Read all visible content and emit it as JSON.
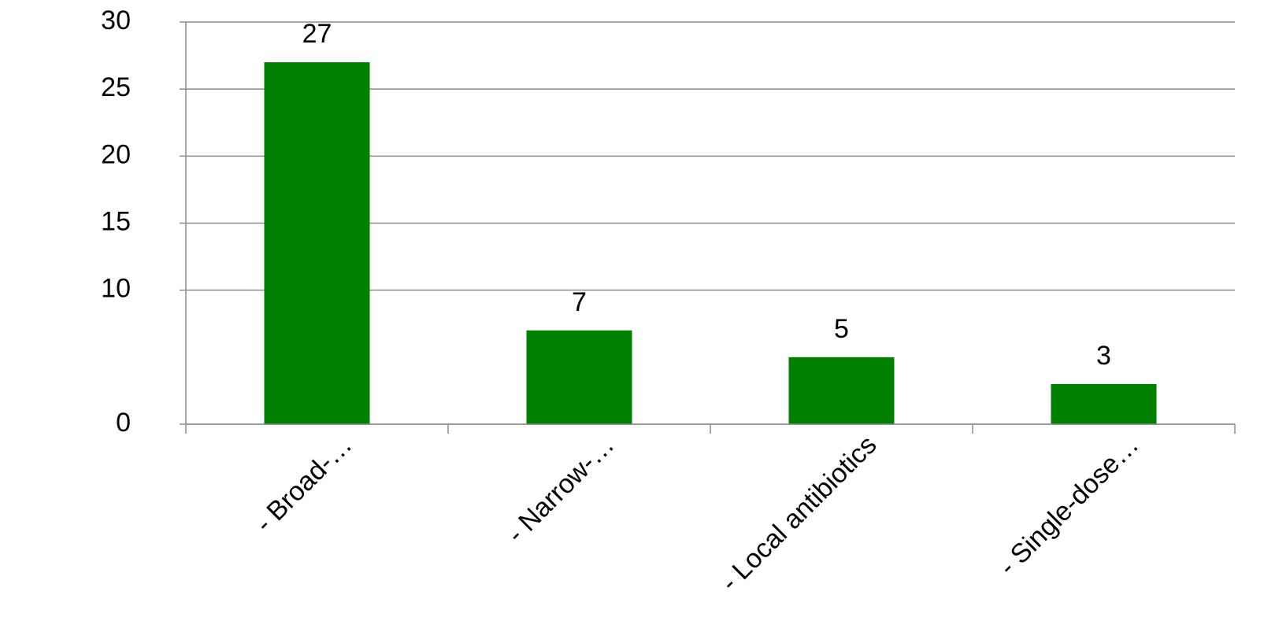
{
  "chart_data": {
    "type": "bar",
    "categories": [
      "-  Broad-…",
      "- Narrow-…",
      "- Local antibiotics",
      "- Single-dose…"
    ],
    "values": [
      27,
      7,
      5,
      3
    ],
    "color": "#008000",
    "ylim": [
      0,
      30
    ],
    "yticks": [
      0,
      10,
      15,
      20,
      25,
      30
    ],
    "grid": true
  }
}
